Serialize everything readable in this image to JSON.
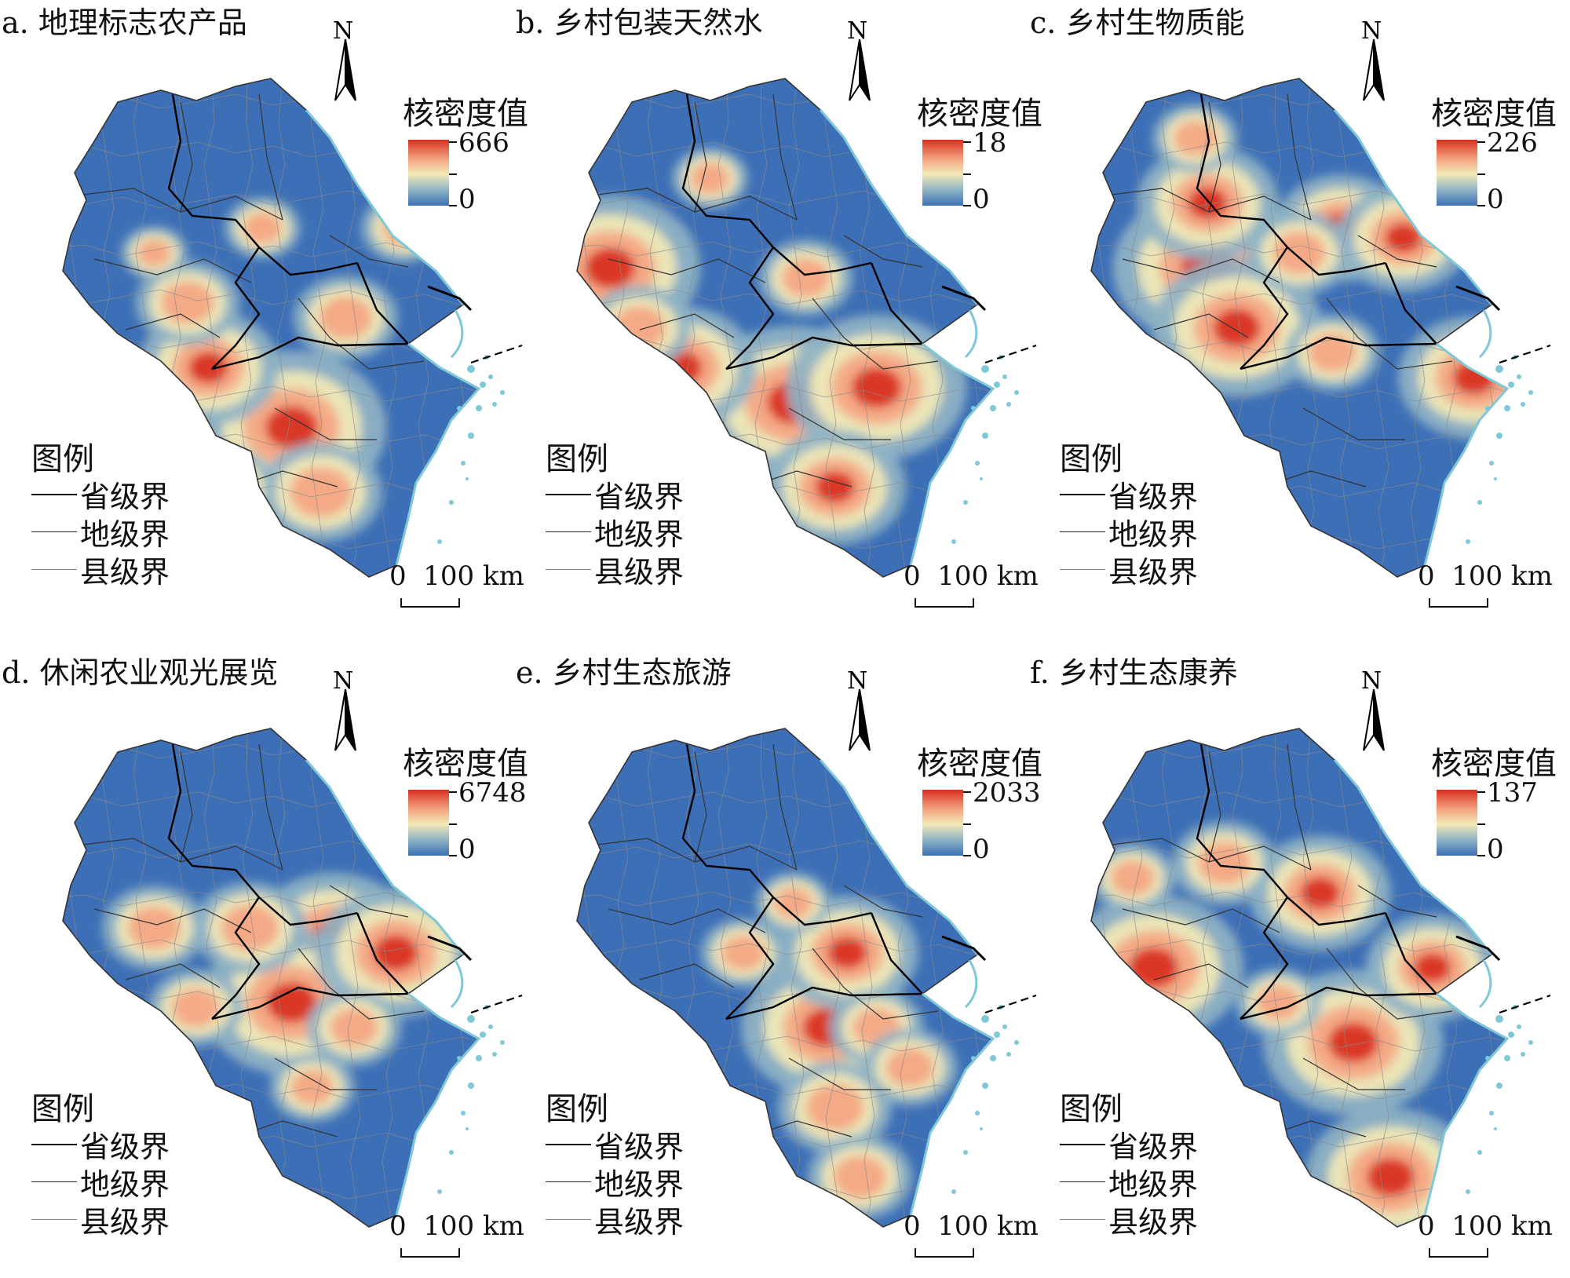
{
  "panels": [
    {
      "title": "a. 地理标志农产品",
      "legend_title": "核密度值",
      "max": "666",
      "min": "0",
      "hotspots": [
        [
          0.55,
          0.7,
          1.0
        ],
        [
          0.35,
          0.58,
          0.75
        ],
        [
          0.68,
          0.48,
          0.55
        ],
        [
          0.3,
          0.45,
          0.55
        ],
        [
          0.62,
          0.83,
          0.65
        ],
        [
          0.48,
          0.3,
          0.4
        ],
        [
          0.82,
          0.3,
          0.45
        ],
        [
          0.4,
          0.82,
          0.5
        ],
        [
          0.22,
          0.35,
          0.35
        ]
      ]
    },
    {
      "title": "b. 乡村包装天然水",
      "legend_title": "核密度值",
      "max": "18",
      "min": "0",
      "hotspots": [
        [
          0.08,
          0.38,
          0.95
        ],
        [
          0.52,
          0.65,
          1.0
        ],
        [
          0.72,
          0.62,
          0.95
        ],
        [
          0.25,
          0.58,
          0.8
        ],
        [
          0.62,
          0.82,
          0.75
        ],
        [
          0.15,
          0.5,
          0.55
        ],
        [
          0.55,
          0.4,
          0.5
        ],
        [
          0.32,
          0.2,
          0.4
        ]
      ]
    },
    {
      "title": "c. 乡村生物质能",
      "legend_title": "核密度值",
      "max": "226",
      "min": "0",
      "hotspots": [
        [
          0.28,
          0.38,
          1.0
        ],
        [
          0.35,
          0.5,
          0.9
        ],
        [
          0.28,
          0.25,
          0.75
        ],
        [
          0.6,
          0.3,
          0.7
        ],
        [
          0.75,
          0.32,
          0.7
        ],
        [
          0.5,
          0.35,
          0.55
        ],
        [
          0.58,
          0.55,
          0.5
        ],
        [
          0.92,
          0.6,
          0.8
        ],
        [
          0.25,
          0.12,
          0.45
        ]
      ]
    },
    {
      "title": "d. 休闲农业观光展览",
      "legend_title": "核密度值",
      "max": "6748",
      "min": "0",
      "hotspots": [
        [
          0.65,
          0.42,
          0.85
        ],
        [
          0.55,
          0.55,
          0.95
        ],
        [
          0.8,
          0.45,
          0.85
        ],
        [
          0.45,
          0.4,
          0.6
        ],
        [
          0.22,
          0.4,
          0.55
        ],
        [
          0.32,
          0.56,
          0.5
        ],
        [
          0.6,
          0.72,
          0.45
        ],
        [
          0.7,
          0.6,
          0.5
        ]
      ]
    },
    {
      "title": "e. 乡村生态旅游",
      "legend_title": "核密度值",
      "max": "2033",
      "min": "0",
      "hotspots": [
        [
          0.6,
          0.6,
          0.9
        ],
        [
          0.65,
          0.45,
          0.75
        ],
        [
          0.62,
          0.76,
          0.6
        ],
        [
          0.68,
          0.9,
          0.55
        ],
        [
          0.72,
          0.6,
          0.5
        ],
        [
          0.4,
          0.45,
          0.45
        ],
        [
          0.8,
          0.68,
          0.5
        ],
        [
          0.52,
          0.35,
          0.4
        ]
      ]
    },
    {
      "title": "f. 乡村生态康养",
      "legend_title": "核密度值",
      "max": "137",
      "min": "0",
      "hotspots": [
        [
          0.15,
          0.48,
          0.95
        ],
        [
          0.63,
          0.63,
          0.95
        ],
        [
          0.72,
          0.9,
          0.9
        ],
        [
          0.55,
          0.33,
          0.75
        ],
        [
          0.82,
          0.48,
          0.7
        ],
        [
          0.32,
          0.27,
          0.55
        ],
        [
          0.1,
          0.3,
          0.45
        ],
        [
          0.45,
          0.55,
          0.45
        ]
      ]
    }
  ],
  "legend": {
    "title": "图例",
    "province": "省级界",
    "prefecture": "地级界",
    "county": "县级界"
  },
  "scale": {
    "zero": "0",
    "label": "100 km"
  },
  "north": "N",
  "colors": {
    "high": "#d7301f",
    "mid_high": "#f4a582",
    "mid": "#f3e9b6",
    "mid_low": "#8fb3c4",
    "low": "#3d6fb6",
    "coast": "#7ec8d8"
  }
}
